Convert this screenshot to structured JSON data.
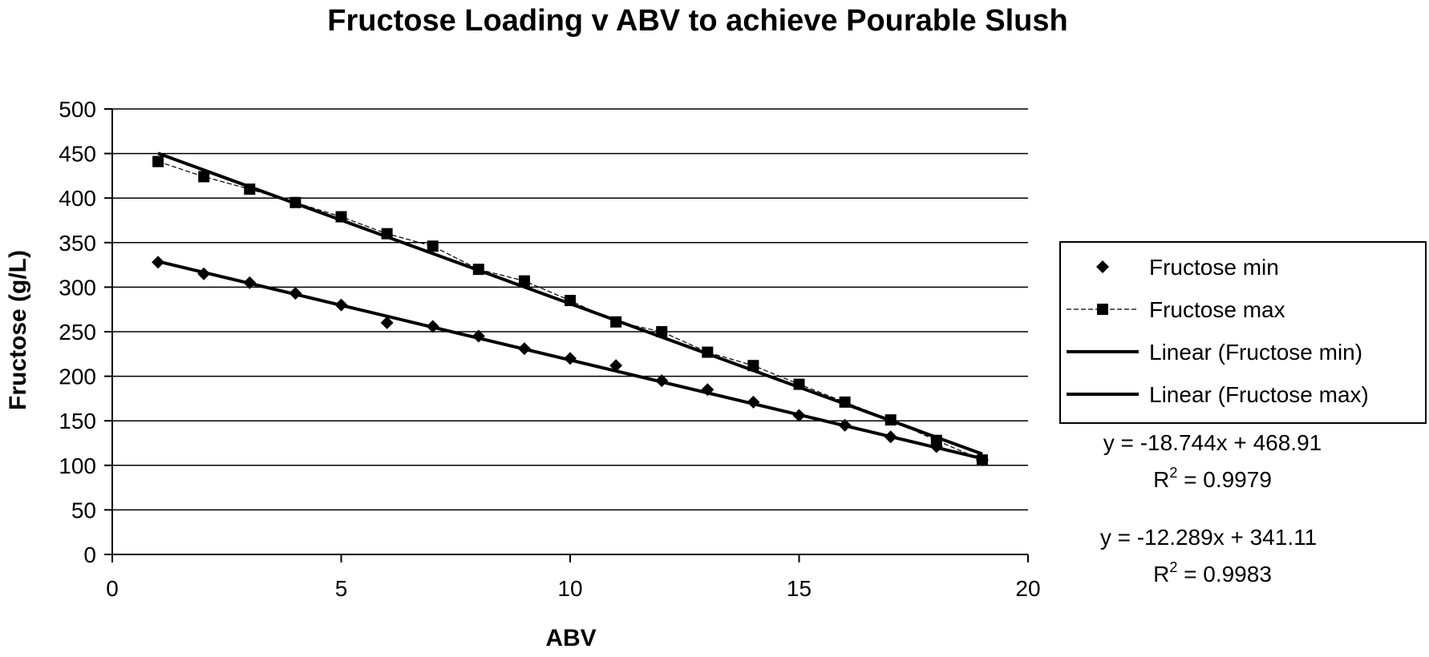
{
  "chart_data": {
    "type": "scatter",
    "title": "Fructose Loading v ABV to achieve Pourable Slush",
    "xlabel": "ABV",
    "ylabel": "Fructose (g/L)",
    "xlim": [
      0,
      20
    ],
    "ylim": [
      0,
      500
    ],
    "xticks": [
      0,
      5,
      10,
      15,
      20
    ],
    "yticks": [
      0,
      50,
      100,
      150,
      200,
      250,
      300,
      350,
      400,
      450,
      500
    ],
    "grid": "horizontal",
    "legend_position": "right",
    "series": [
      {
        "name": "Fructose min",
        "marker": "diamond",
        "x": [
          1,
          2,
          3,
          4,
          5,
          6,
          7,
          8,
          9,
          10,
          11,
          12,
          13,
          14,
          15,
          16,
          17,
          18,
          19
        ],
        "y": [
          328,
          315,
          305,
          293,
          280,
          260,
          256,
          245,
          231,
          220,
          212,
          195,
          185,
          171,
          156,
          145,
          132,
          121,
          106
        ]
      },
      {
        "name": "Fructose max",
        "marker": "square",
        "x": [
          1,
          2,
          3,
          4,
          5,
          6,
          7,
          8,
          9,
          10,
          11,
          12,
          13,
          14,
          15,
          16,
          17,
          18,
          19
        ],
        "y": [
          441,
          424,
          410,
          395,
          379,
          360,
          346,
          320,
          307,
          285,
          261,
          250,
          227,
          212,
          191,
          171,
          151,
          128,
          106
        ]
      }
    ],
    "trendlines": [
      {
        "name": "Linear (Fructose min)",
        "slope": -12.289,
        "intercept": 341.11
      },
      {
        "name": "Linear (Fructose max)",
        "slope": -18.744,
        "intercept": 468.91
      }
    ],
    "annotations": [
      {
        "equation": "y = -18.744x + 468.91",
        "r2_label": "R",
        "r2_sup": "2",
        "r2_value": " = 0.9979"
      },
      {
        "equation": "y = -12.289x + 341.11",
        "r2_label": "R",
        "r2_sup": "2",
        "r2_value": " = 0.9983"
      }
    ]
  }
}
